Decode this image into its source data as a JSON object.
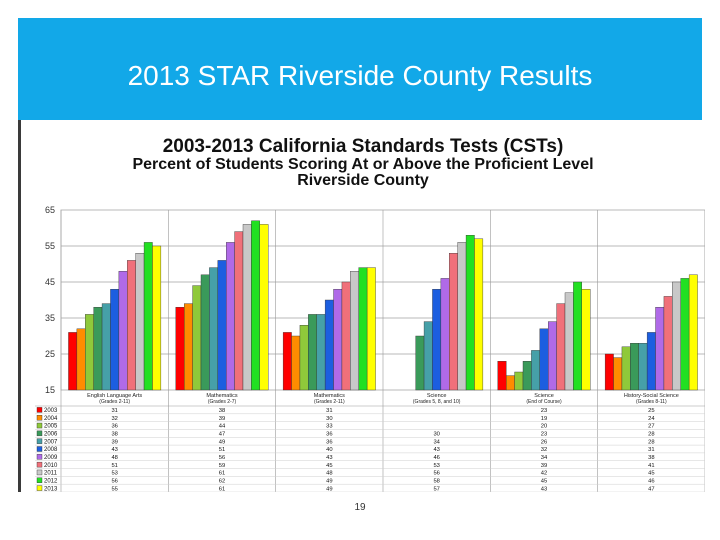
{
  "slide": {
    "title": "2013 STAR Riverside County Results",
    "page_number": "19",
    "colors": {
      "title_band": "#12a8e8"
    }
  },
  "chart_data": {
    "type": "bar",
    "title": "2003-2013 California Standards Tests (CSTs)",
    "subtitle": "Percent of Students Scoring At or Above the Proficient Level",
    "subtitle2": "Riverside County",
    "xlabel": "",
    "ylabel": "",
    "ylim": [
      15,
      65
    ],
    "yticks": [
      15,
      25,
      35,
      45,
      55,
      65
    ],
    "grid": true,
    "legend": "table-bottom",
    "categories": [
      {
        "name": "English Language Arts",
        "sub": "(Grades 2-11)"
      },
      {
        "name": "Mathematics",
        "sub": "(Grades 2-7)"
      },
      {
        "name": "Mathematics",
        "sub": "(Grades 2-11)"
      },
      {
        "name": "Science",
        "sub": "(Grades 5, 8, and 10)"
      },
      {
        "name": "Science",
        "sub": "(End of Course)"
      },
      {
        "name": "History-Social Science",
        "sub": "(Grades 8-11)"
      }
    ],
    "series": [
      {
        "name": "2003",
        "color": "#ff0000",
        "values": [
          31,
          38,
          31,
          null,
          23,
          25
        ]
      },
      {
        "name": "2004",
        "color": "#ff8c00",
        "values": [
          32,
          39,
          30,
          null,
          19,
          24
        ]
      },
      {
        "name": "2005",
        "color": "#8fc93a",
        "values": [
          36,
          44,
          33,
          null,
          20,
          27
        ]
      },
      {
        "name": "2006",
        "color": "#3a9a5a",
        "values": [
          38,
          47,
          36,
          30,
          23,
          28
        ]
      },
      {
        "name": "2007",
        "color": "#46a0a8",
        "values": [
          39,
          49,
          36,
          34,
          26,
          28
        ]
      },
      {
        "name": "2008",
        "color": "#1c5ee0",
        "values": [
          43,
          51,
          40,
          43,
          32,
          31
        ]
      },
      {
        "name": "2009",
        "color": "#b06ae8",
        "values": [
          48,
          56,
          43,
          46,
          34,
          38
        ]
      },
      {
        "name": "2010",
        "color": "#f0707a",
        "values": [
          51,
          59,
          45,
          53,
          39,
          41
        ]
      },
      {
        "name": "2011",
        "color": "#c8c8c8",
        "values": [
          53,
          61,
          48,
          56,
          42,
          45
        ]
      },
      {
        "name": "2012",
        "color": "#22e022",
        "values": [
          56,
          62,
          49,
          58,
          45,
          46
        ]
      },
      {
        "name": "2013",
        "color": "#ffff00",
        "values": [
          55,
          61,
          49,
          57,
          43,
          47
        ]
      }
    ]
  }
}
